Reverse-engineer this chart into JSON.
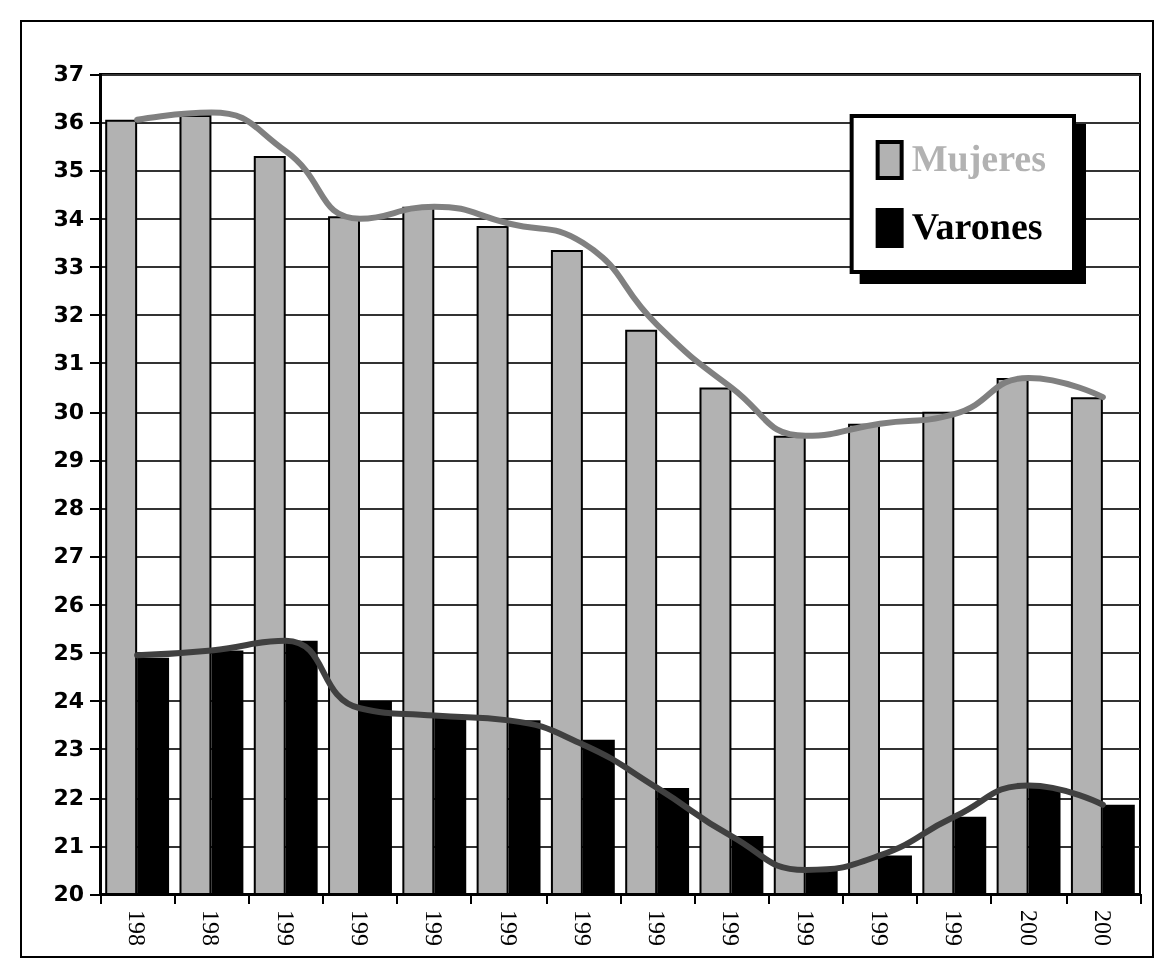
{
  "chart_data": {
    "type": "bar",
    "categories": [
      "198",
      "198",
      "199",
      "199",
      "199",
      "199",
      "199",
      "199",
      "199",
      "199",
      "199",
      "199",
      "200",
      "200"
    ],
    "series": [
      {
        "name": "Mujeres",
        "color": "#b2b2b2",
        "values": [
          36.05,
          36.15,
          35.3,
          34.05,
          34.25,
          33.85,
          33.35,
          31.7,
          30.5,
          29.5,
          29.75,
          30.0,
          30.7,
          30.3
        ]
      },
      {
        "name": "Varones",
        "color": "#000000",
        "values": [
          24.9,
          25.05,
          25.25,
          24.0,
          23.65,
          23.6,
          23.2,
          22.2,
          21.2,
          20.5,
          20.8,
          21.6,
          22.2,
          21.85
        ]
      },
      {
        "type": "line",
        "color": "#808080",
        "values": [
          36.05,
          36.2,
          35.4,
          34.0,
          34.25,
          33.9,
          33.5,
          31.8,
          30.5,
          29.5,
          29.75,
          29.95,
          30.7,
          30.3
        ]
      },
      {
        "type": "line",
        "color": "#404040",
        "values": [
          24.95,
          25.05,
          25.25,
          23.85,
          23.7,
          23.6,
          23.1,
          22.2,
          21.2,
          20.5,
          20.8,
          21.6,
          22.25,
          21.85
        ]
      }
    ],
    "ylim": [
      20,
      37
    ],
    "yticks": [
      20,
      21,
      22,
      23,
      24,
      25,
      26,
      27,
      28,
      29,
      30,
      31,
      32,
      33,
      34,
      35,
      36,
      37
    ],
    "grid": "y",
    "legend": "top right",
    "marker": "none",
    "line_style": "solid"
  }
}
